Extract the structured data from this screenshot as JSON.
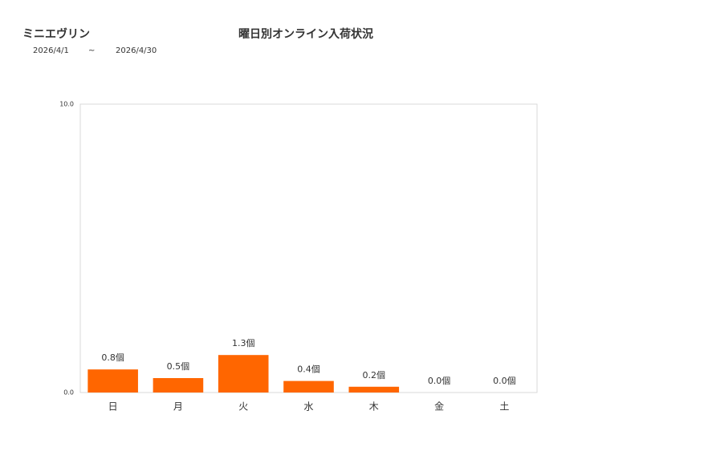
{
  "header": {
    "shop": "ミニエヴリン",
    "date_from": "2026/4/1",
    "separator": "~",
    "date_to": "2026/4/30"
  },
  "chart_data": {
    "type": "bar",
    "title": "曜日別オンライン入荷状況",
    "categories": [
      "日",
      "月",
      "火",
      "水",
      "木",
      "金",
      "土"
    ],
    "values": [
      0.8,
      0.5,
      1.3,
      0.4,
      0.2,
      0,
      0
    ],
    "value_labels": [
      "0.8個",
      "0.5個",
      "1.3個",
      "0.4個",
      "0.2個",
      "0.0個",
      "0.0個"
    ],
    "color": "#ff6600",
    "ylim": [
      0,
      10
    ],
    "yticks": [
      {
        "value": 0,
        "label": "0.0"
      },
      {
        "value": 10,
        "label": "10.0"
      }
    ],
    "grid": false
  }
}
